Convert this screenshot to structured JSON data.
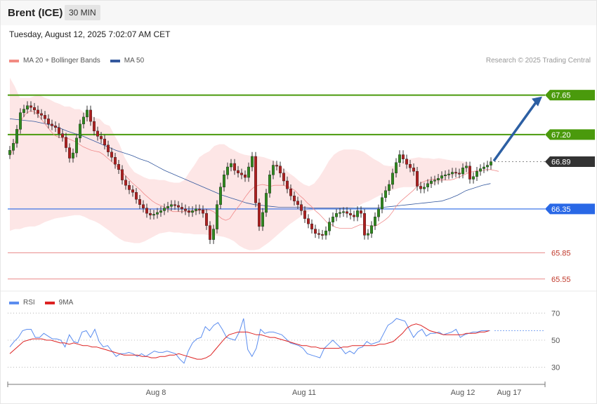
{
  "header": {
    "instrument": "Brent (ICE)",
    "timeframe": "30 MIN",
    "datetime": "Tuesday, August 12, 2025 7:02:07 AM CET"
  },
  "legend": {
    "ma20": "MA 20 + Bollinger Bands",
    "ma50": "MA 50",
    "credit": "Research © 2025 Trading Central"
  },
  "rsi_legend": {
    "rsi": "RSI",
    "ma": "9MA"
  },
  "colors": {
    "green": "#4a9a0c",
    "blue": "#2968e6",
    "red": "#e56b6b",
    "dark": "#333333",
    "arrow": "#2c5fa3",
    "band": "#fde3e3",
    "ma50": "#34589e"
  },
  "chart_data": [
    {
      "type": "candlestick",
      "ylim": [
        65.5,
        68.0
      ],
      "x_ticks": [
        "Aug 8",
        "Aug 11",
        "Aug 12",
        "Aug 17"
      ],
      "levels": [
        {
          "value": 67.65,
          "label": "67.65",
          "role": "resistance"
        },
        {
          "value": 67.2,
          "label": "67.20",
          "role": "resistance"
        },
        {
          "value": 66.89,
          "label": "66.89",
          "role": "last"
        },
        {
          "value": 66.35,
          "label": "66.35",
          "role": "pivot"
        },
        {
          "value": 65.85,
          "label": "65.85",
          "role": "support"
        },
        {
          "value": 65.55,
          "label": "65.55",
          "role": "support"
        }
      ],
      "close": [
        67.02,
        67.1,
        67.26,
        67.45,
        67.49,
        67.53,
        67.51,
        67.48,
        67.44,
        67.42,
        67.38,
        67.32,
        67.3,
        67.28,
        67.21,
        67.17,
        67.05,
        66.93,
        66.99,
        67.16,
        67.32,
        67.4,
        67.48,
        67.35,
        67.24,
        67.18,
        67.15,
        67.08,
        67.0,
        66.94,
        66.86,
        66.8,
        66.68,
        66.62,
        66.57,
        66.54,
        66.46,
        66.4,
        66.36,
        66.3,
        66.28,
        66.29,
        66.31,
        66.33,
        66.36,
        66.38,
        66.4,
        66.39,
        66.37,
        66.35,
        66.33,
        66.31,
        66.33,
        66.35,
        66.34,
        66.3,
        66.16,
        66.0,
        66.12,
        66.4,
        66.6,
        66.74,
        66.83,
        66.87,
        66.79,
        66.76,
        66.74,
        66.71,
        66.83,
        66.95,
        66.42,
        66.15,
        66.31,
        66.53,
        66.74,
        66.85,
        66.84,
        66.76,
        66.67,
        66.58,
        66.5,
        66.44,
        66.4,
        66.33,
        66.24,
        66.18,
        66.12,
        66.07,
        66.06,
        66.05,
        66.1,
        66.2,
        66.26,
        66.3,
        66.31,
        66.32,
        66.3,
        66.28,
        66.26,
        66.33,
        66.3,
        66.05,
        66.07,
        66.16,
        66.26,
        66.35,
        66.48,
        66.56,
        66.63,
        66.76,
        66.88,
        66.97,
        66.92,
        66.86,
        66.82,
        66.78,
        66.61,
        66.58,
        66.6,
        66.64,
        66.67,
        66.68,
        66.7,
        66.73,
        66.74,
        66.75,
        66.77,
        66.76,
        66.75,
        66.82,
        66.84,
        66.69,
        66.72,
        66.78,
        66.81,
        66.83,
        66.85,
        66.89
      ],
      "ma20": [
        66.95,
        67.06,
        67.22,
        67.38,
        67.44,
        67.47,
        67.46,
        67.42,
        67.36,
        67.3,
        67.24,
        67.19,
        67.17,
        67.16,
        67.16,
        67.14,
        67.12,
        67.09,
        67.06,
        67.04,
        67.02,
        67.01,
        67.0,
        66.97,
        66.93,
        66.89,
        66.85,
        66.8,
        66.75,
        66.7,
        66.65,
        66.61,
        66.57,
        66.52,
        66.48,
        66.44,
        66.41,
        66.39,
        66.37,
        66.34,
        66.32,
        66.32,
        66.32,
        66.32,
        66.32,
        66.32,
        66.33,
        66.34,
        66.34,
        66.34,
        66.32,
        66.28,
        66.24,
        66.22,
        66.24,
        66.31,
        66.37,
        66.43,
        66.5,
        66.56,
        66.6,
        66.62,
        66.63,
        66.62,
        66.61,
        66.62,
        66.62,
        66.62,
        66.61,
        66.59,
        66.56,
        66.51,
        66.47,
        66.42,
        66.38,
        66.33,
        66.29,
        66.24,
        66.19,
        66.17,
        66.14,
        66.13,
        66.13,
        66.13,
        66.13,
        66.15,
        66.17,
        66.17,
        66.16,
        66.15,
        66.16,
        66.19,
        66.22,
        66.26,
        66.32,
        66.39,
        66.44,
        66.48,
        66.52,
        66.56,
        66.61,
        66.65,
        66.67,
        66.68,
        66.69,
        66.69,
        66.68,
        66.68,
        66.68,
        66.69,
        66.71,
        66.73,
        66.75,
        66.77,
        66.78,
        66.79,
        66.79,
        66.8,
        66.8,
        66.79,
        66.78
      ],
      "ma50": [
        67.38,
        67.37,
        67.36,
        67.35,
        67.33,
        67.31,
        67.28,
        67.24,
        67.21,
        67.18,
        67.14,
        67.1,
        67.06,
        67.02,
        66.99,
        66.96,
        66.92,
        66.89,
        66.84,
        66.79,
        66.75,
        66.71,
        66.67,
        66.63,
        66.59,
        66.55,
        66.51,
        66.48,
        66.45,
        66.42,
        66.4,
        66.39,
        66.38,
        66.37,
        66.37,
        66.37,
        66.37,
        66.36,
        66.36,
        66.36,
        66.36,
        66.36,
        66.36,
        66.36,
        66.36,
        66.36,
        66.37,
        66.38,
        66.39,
        66.4,
        66.41,
        66.42,
        66.43,
        66.44,
        66.47,
        66.51,
        66.56,
        66.59,
        66.62,
        66.64
      ],
      "bb_upper": [
        67.85,
        67.75,
        67.62,
        67.62,
        67.62,
        67.64,
        67.65,
        67.62,
        67.6,
        67.57,
        67.55,
        67.52,
        67.52,
        67.49,
        67.49,
        67.45,
        67.43,
        67.39,
        67.38,
        67.32,
        67.3,
        67.19,
        67.09,
        66.94,
        66.84,
        66.77,
        66.74,
        66.71,
        66.69,
        66.69,
        66.68,
        66.68,
        66.66,
        66.65,
        66.65,
        66.68,
        66.77,
        66.85,
        66.94,
        66.98,
        67.01,
        67.07,
        67.09,
        67.09,
        67.05,
        67.02,
        66.99,
        66.97,
        66.96,
        66.96,
        66.95,
        66.94,
        66.92,
        66.9,
        66.86,
        66.81,
        66.76,
        66.72,
        66.67,
        66.63,
        66.61,
        66.64,
        66.71,
        66.8,
        66.9,
        66.97,
        67.01,
        67.03,
        67.03,
        67.03,
        67.02,
        67.0,
        66.96,
        66.92,
        66.89,
        66.85,
        66.84,
        66.84,
        66.86,
        66.9,
        66.92,
        66.93,
        66.94,
        66.93,
        66.93,
        66.92,
        66.93,
        66.92,
        66.91,
        66.9,
        66.9,
        66.89,
        66.88,
        66.86,
        66.85,
        66.83
      ],
      "bb_lower": [
        66.1,
        66.12,
        66.12,
        66.14,
        66.15,
        66.15,
        66.17,
        66.2,
        66.22,
        66.24,
        66.25,
        66.26,
        66.27,
        66.28,
        66.28,
        66.26,
        66.23,
        66.21,
        66.18,
        66.14,
        66.1,
        66.05,
        66.01,
        65.98,
        65.97,
        65.96,
        65.96,
        65.98,
        66.01,
        66.04,
        66.07,
        66.08,
        66.09,
        66.08,
        66.08,
        66.07,
        66.07,
        66.06,
        66.06,
        66.06,
        66.05,
        66.05,
        66.04,
        66.03,
        66.01,
        65.98,
        65.93,
        65.9,
        65.88,
        65.88,
        65.89,
        65.93,
        65.97,
        66.02,
        66.07,
        66.12,
        66.17,
        66.21,
        66.25,
        66.29,
        66.32,
        66.34,
        66.35,
        66.35,
        66.35,
        66.35,
        66.35,
        66.35,
        66.36,
        66.37,
        66.39,
        66.42,
        66.44,
        66.47,
        66.5,
        66.53,
        66.55,
        66.57,
        66.59,
        66.6,
        66.6,
        66.6,
        66.6,
        66.61,
        66.62,
        66.63,
        66.65,
        66.68,
        66.7,
        66.72,
        66.74,
        66.75,
        66.76
      ]
    },
    {
      "type": "line",
      "ylim": [
        20,
        80
      ],
      "y_ticks": [
        70,
        50,
        30
      ],
      "series": [
        {
          "name": "RSI",
          "values": [
            45,
            49,
            52,
            57,
            58,
            58,
            52,
            52,
            55,
            53,
            51,
            51,
            50,
            45,
            54,
            49,
            48,
            56,
            57,
            52,
            58,
            49,
            45,
            46,
            42,
            38,
            40,
            40,
            41,
            40,
            38,
            40,
            38,
            40,
            42,
            41,
            41,
            42,
            41,
            40,
            36,
            33,
            42,
            48,
            51,
            52,
            60,
            57,
            61,
            63,
            58,
            52,
            51,
            50,
            56,
            66,
            43,
            38,
            44,
            58,
            55,
            56,
            56,
            55,
            54,
            51,
            48,
            47,
            46,
            44,
            40,
            39,
            38,
            37,
            44,
            47,
            50,
            47,
            44,
            40,
            42,
            40,
            44,
            45,
            49,
            47,
            48,
            49,
            55,
            61,
            63,
            66,
            65,
            64,
            58,
            52,
            56,
            58,
            53,
            55,
            55,
            56,
            54,
            55,
            56,
            58,
            52,
            54,
            55,
            56,
            56,
            57,
            57,
            57
          ]
        },
        {
          "name": "9MA",
          "values": [
            40,
            43,
            46,
            49,
            50,
            51,
            51,
            51,
            50,
            50,
            49,
            48,
            48,
            47,
            48,
            47,
            46,
            46,
            45,
            45,
            44,
            43,
            42,
            41,
            40,
            39,
            39,
            39,
            39,
            38,
            38,
            37,
            37,
            38,
            38,
            39,
            39,
            40,
            39,
            38,
            37,
            36,
            36,
            37,
            39,
            43,
            47,
            51,
            54,
            55,
            56,
            56,
            56,
            55,
            54,
            54,
            53,
            52,
            52,
            51,
            50,
            49,
            48,
            47,
            46,
            46,
            45,
            45,
            44,
            44,
            44,
            44,
            44,
            45,
            45,
            46,
            46,
            46,
            46,
            46,
            46,
            47,
            47,
            48,
            49,
            52,
            55,
            59,
            61,
            62,
            61,
            59,
            57,
            56,
            55,
            54,
            54,
            54,
            54,
            54,
            55,
            55,
            55,
            56,
            56,
            57
          ]
        }
      ]
    }
  ]
}
